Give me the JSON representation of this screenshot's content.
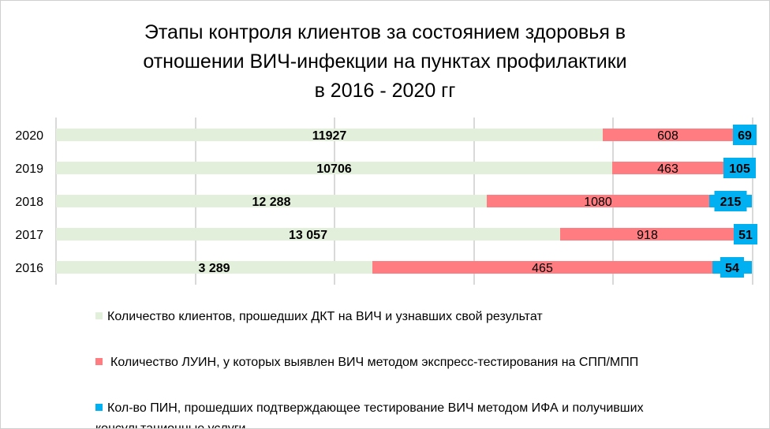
{
  "chart_data": {
    "type": "bar",
    "orientation": "horizontal",
    "stacked": true,
    "title": [
      "Этапы контроля клиентов за состоянием здоровья в",
      "отношении ВИЧ-инфекции на пунктах профилактики",
      "в 2016 - 2020 гг"
    ],
    "categories": [
      "2020",
      "2019",
      "2018",
      "2017",
      "2016"
    ],
    "series": [
      {
        "name": "Количество клиентов, прошедших ДКТ на ВИЧ и узнавших свой результат",
        "color": "#e2efda",
        "values": [
          11927,
          10706,
          12288,
          13057,
          3289
        ],
        "labels": [
          "11927",
          "10706",
          "12 288",
          "13 057",
          "3 289"
        ]
      },
      {
        "name": "Количество ЛУИН, у которых выявлен ВИЧ методом экспресс-тестирования на СПП/МПП",
        "color": "#ff7c80",
        "values": [
          608,
          463,
          1080,
          918,
          465
        ],
        "labels": [
          "608",
          "463",
          "1080",
          "918",
          "465"
        ]
      },
      {
        "name": "Кол-во ПИН, прошедших подтверждающее тестирование  ВИЧ методом ИФА и получивших консультационные услуги",
        "color": "#00b0f0",
        "values": [
          69,
          105,
          215,
          51,
          54
        ],
        "labels": [
          "69",
          "105",
          "215",
          "51",
          "54"
        ]
      }
    ],
    "grid": true,
    "legend": "bottom"
  }
}
